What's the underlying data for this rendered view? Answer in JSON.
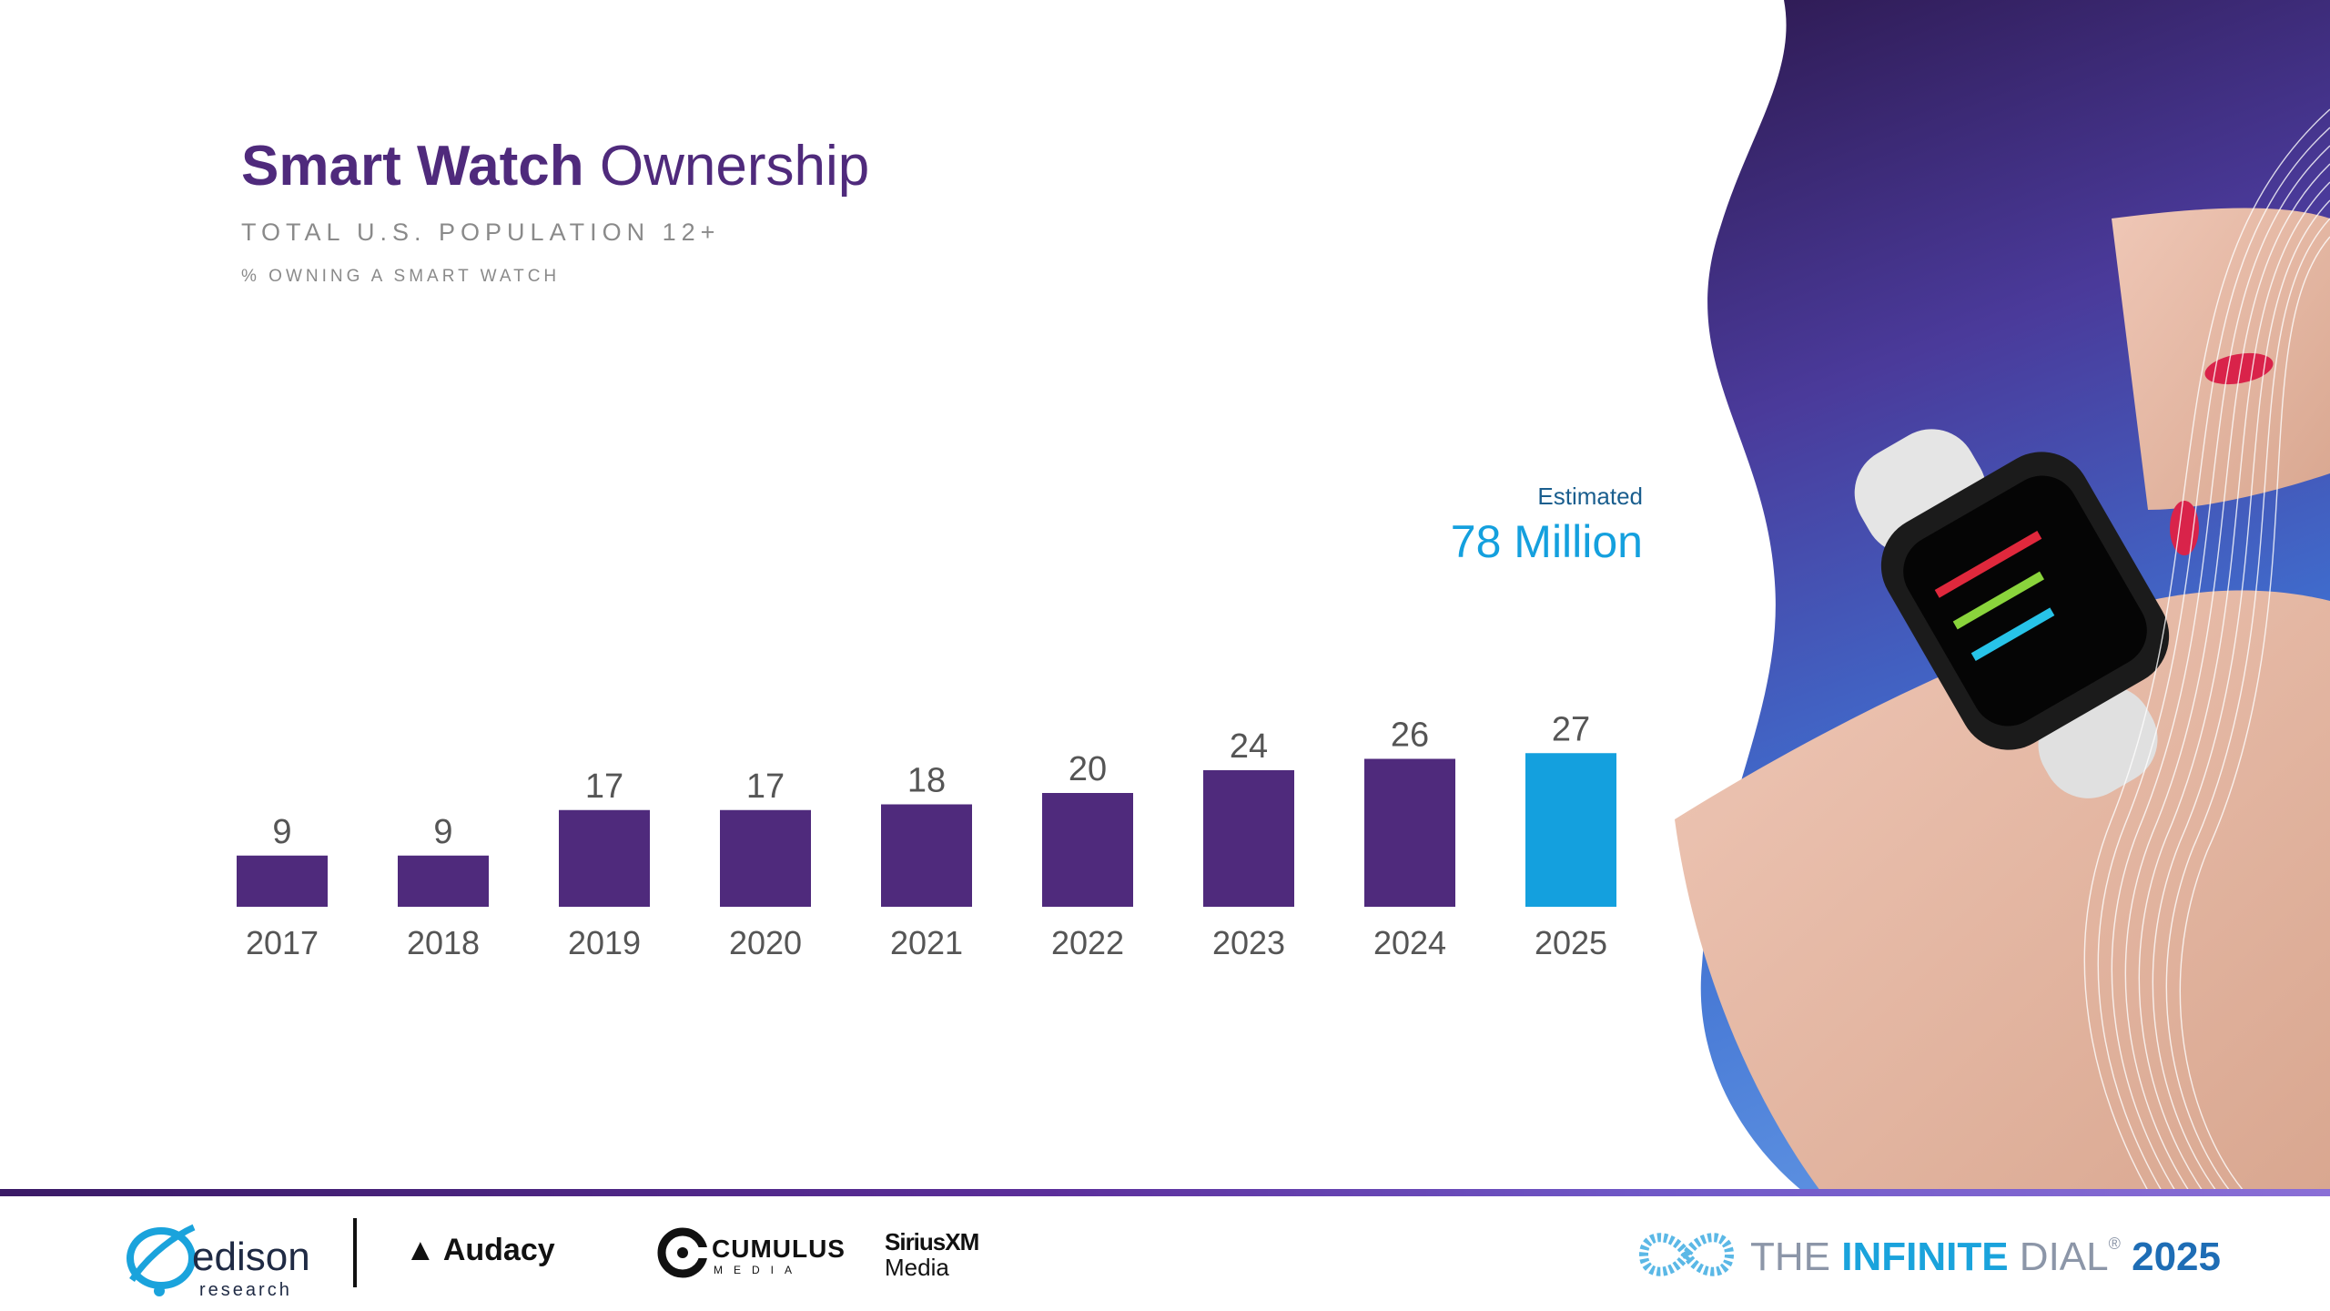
{
  "header": {
    "title_bold": "Smart Watch",
    "title_light": "Ownership",
    "subtitle": "TOTAL U.S. POPULATION 12+",
    "measure": "% OWNING A SMART WATCH"
  },
  "estimate": {
    "label": "Estimated",
    "value": "78 Million"
  },
  "colors": {
    "primary": "#4f2a7c",
    "highlight": "#14a0de",
    "label": "#555555"
  },
  "chart_data": {
    "type": "bar",
    "title": "Smart Watch Ownership",
    "subtitle": "TOTAL U.S. POPULATION 12+",
    "ylabel": "% OWNING A SMART WATCH",
    "xlabel": "",
    "categories": [
      "2017",
      "2018",
      "2019",
      "2020",
      "2021",
      "2022",
      "2023",
      "2024",
      "2025"
    ],
    "values": [
      9,
      9,
      17,
      17,
      18,
      20,
      24,
      26,
      27
    ],
    "highlight_category": "2025",
    "ylim": [
      0,
      30
    ],
    "grid": false,
    "legend": "none"
  },
  "footer": {
    "edison_name": "edison",
    "edison_sub": "research",
    "audacy": "Audacy",
    "cumulus_name": "CUMULUS",
    "cumulus_sub": "MEDIA",
    "sirius_a": "SiriusXM",
    "sirius_b": "Media",
    "infinite_the": "THE ",
    "infinite_word": "INFINITE",
    "infinite_dial": " DIAL",
    "infinite_reg": "®",
    "infinite_year": "2025"
  }
}
